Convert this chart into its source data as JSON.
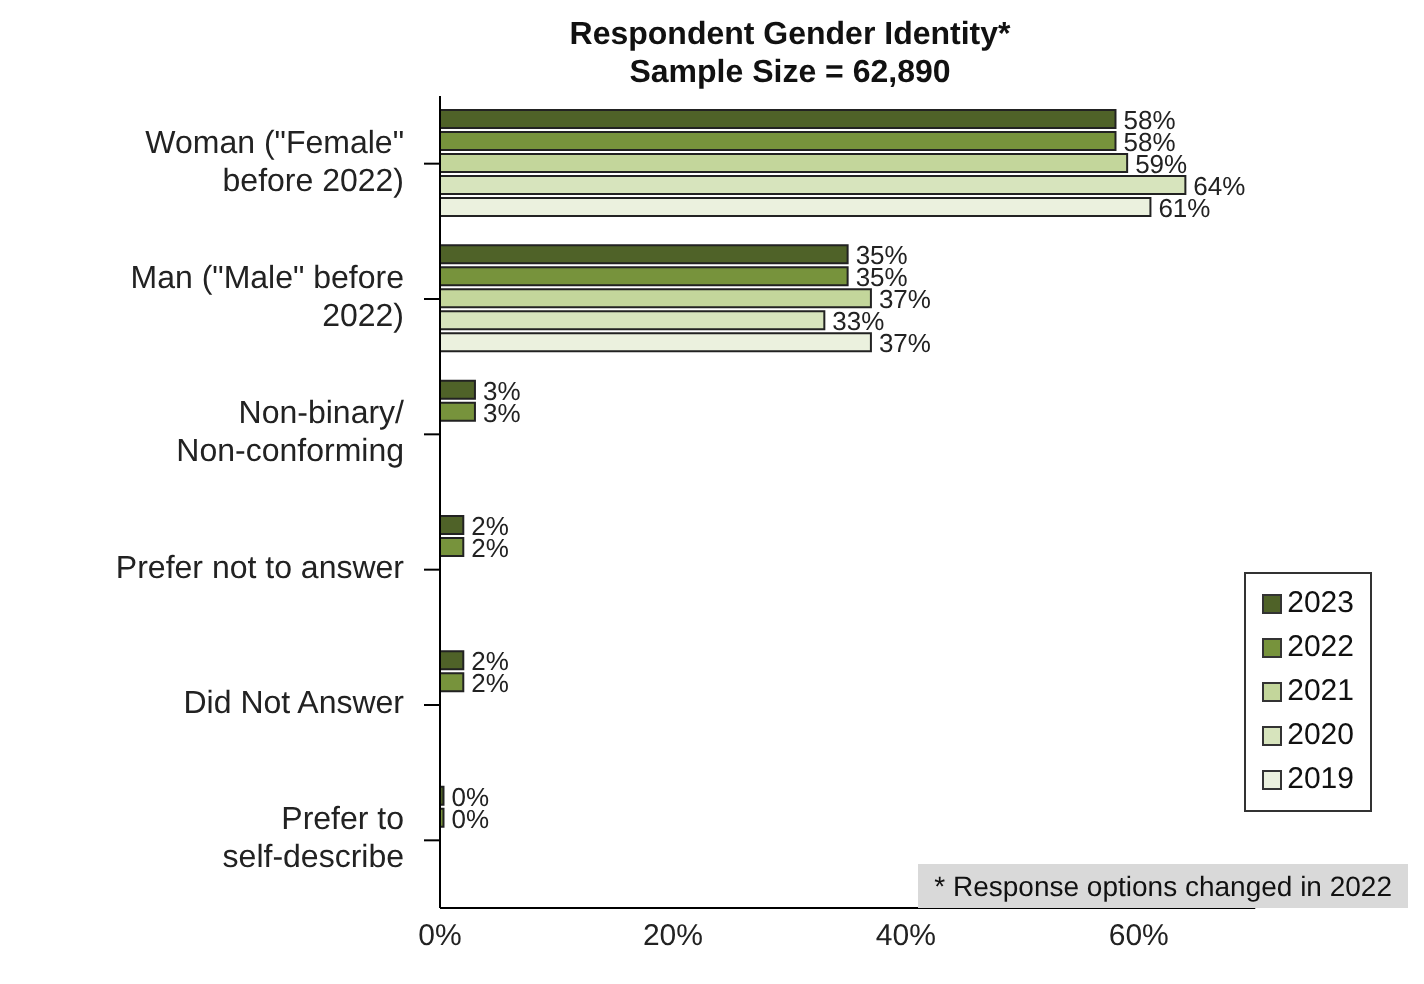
{
  "chart_data": {
    "type": "bar",
    "orientation": "horizontal",
    "title": "Respondent Gender Identity*",
    "subtitle": "Sample Size = 62,890",
    "categories": [
      "Woman (\"Female\" before 2022)",
      "Man (\"Male\" before 2022)",
      "Non-binary/Non-conforming",
      "Prefer not to answer",
      "Did Not Answer",
      "Prefer to self-describe"
    ],
    "series": [
      {
        "name": "2023",
        "color": "#4f6228",
        "values": [
          58,
          35,
          3,
          2,
          2,
          0.3
        ],
        "value_labels": [
          "58%",
          "35%",
          "3%",
          "2%",
          "2%",
          "0%"
        ]
      },
      {
        "name": "2022",
        "color": "#77933c",
        "values": [
          58,
          35,
          3,
          2,
          2,
          0.3
        ],
        "value_labels": [
          "58%",
          "35%",
          "3%",
          "2%",
          "2%",
          "0%"
        ]
      },
      {
        "name": "2021",
        "color": "#c3d69b",
        "values": [
          59,
          37,
          null,
          null,
          null,
          null
        ],
        "value_labels": [
          "59%",
          "37%",
          null,
          null,
          null,
          null
        ]
      },
      {
        "name": "2020",
        "color": "#d7e4bd",
        "values": [
          64,
          33,
          null,
          null,
          null,
          null
        ],
        "value_labels": [
          "64%",
          "33%",
          null,
          null,
          null,
          null
        ]
      },
      {
        "name": "2019",
        "color": "#ebf1de",
        "values": [
          61,
          37,
          null,
          null,
          null,
          null
        ],
        "value_labels": [
          "61%",
          "37%",
          null,
          null,
          null,
          null
        ]
      }
    ],
    "xlim": [
      0,
      70
    ],
    "xticks": [
      {
        "value": 0,
        "label": "0%"
      },
      {
        "value": 20,
        "label": "20%"
      },
      {
        "value": 40,
        "label": "40%"
      },
      {
        "value": 60,
        "label": "60%"
      }
    ],
    "legend": "right",
    "grid": false,
    "annotations": [
      "* Response options changed in 2022"
    ]
  }
}
